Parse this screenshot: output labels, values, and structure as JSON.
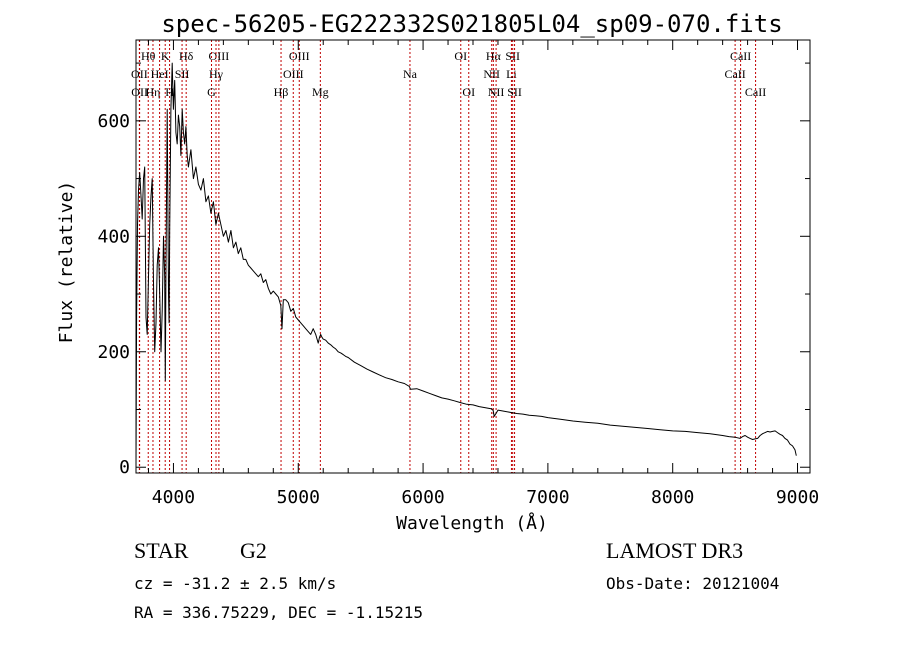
{
  "chart_data": {
    "type": "line",
    "title": "spec-56205-EG222332S021805L04_sp09-070.fits",
    "xlabel": "Wavelength (Å)",
    "ylabel": "Flux (relative)",
    "xlim": [
      3700,
      9100
    ],
    "ylim": [
      -10,
      740
    ],
    "x_ticks": [
      4000,
      5000,
      6000,
      7000,
      8000,
      9000
    ],
    "y_ticks": [
      0,
      200,
      400,
      600
    ],
    "x_tick_labels": [
      "4000",
      "5000",
      "6000",
      "7000",
      "8000",
      "9000"
    ],
    "y_tick_labels": [
      "0",
      "200",
      "400",
      "600"
    ],
    "grid": false,
    "series": [
      {
        "name": "flux",
        "color": "#000000",
        "x": [
          3700,
          3705,
          3712,
          3720,
          3730,
          3740,
          3750,
          3760,
          3770,
          3780,
          3790,
          3800,
          3810,
          3820,
          3830,
          3840,
          3850,
          3860,
          3870,
          3880,
          3890,
          3900,
          3910,
          3920,
          3930,
          3935,
          3940,
          3950,
          3960,
          3965,
          3970,
          3980,
          3990,
          4000,
          4010,
          4020,
          4030,
          4040,
          4050,
          4060,
          4070,
          4080,
          4090,
          4100,
          4110,
          4120,
          4140,
          4160,
          4180,
          4200,
          4220,
          4240,
          4260,
          4280,
          4300,
          4320,
          4340,
          4360,
          4380,
          4400,
          4420,
          4440,
          4460,
          4480,
          4500,
          4520,
          4540,
          4560,
          4580,
          4600,
          4620,
          4640,
          4660,
          4680,
          4700,
          4720,
          4740,
          4760,
          4780,
          4800,
          4820,
          4840,
          4860,
          4870,
          4880,
          4900,
          4920,
          4940,
          4960,
          4980,
          5000,
          5020,
          5040,
          5060,
          5080,
          5100,
          5120,
          5140,
          5160,
          5170,
          5180,
          5190,
          5200,
          5220,
          5240,
          5260,
          5280,
          5300,
          5320,
          5340,
          5360,
          5380,
          5400,
          5450,
          5500,
          5550,
          5600,
          5650,
          5700,
          5750,
          5800,
          5850,
          5890,
          5900,
          5950,
          6000,
          6050,
          6100,
          6150,
          6200,
          6250,
          6300,
          6350,
          6400,
          6450,
          6500,
          6550,
          6562,
          6570,
          6600,
          6650,
          6700,
          6750,
          6800,
          6850,
          6900,
          6950,
          7000,
          7100,
          7200,
          7300,
          7400,
          7500,
          7600,
          7700,
          7800,
          7900,
          8000,
          8100,
          8200,
          8300,
          8400,
          8450,
          8500,
          8520,
          8540,
          8560,
          8580,
          8600,
          8620,
          8640,
          8660,
          8680,
          8700,
          8720,
          8740,
          8760,
          8780,
          8800,
          8820,
          8840,
          8860,
          8880,
          8900,
          8920,
          8940,
          8960,
          8980,
          8990
        ],
        "values": [
          0,
          260,
          420,
          480,
          510,
          470,
          430,
          500,
          520,
          260,
          230,
          330,
          420,
          470,
          500,
          320,
          200,
          250,
          350,
          380,
          300,
          200,
          270,
          400,
          330,
          150,
          350,
          620,
          300,
          250,
          410,
          620,
          700,
          620,
          670,
          580,
          560,
          610,
          590,
          540,
          620,
          580,
          560,
          590,
          540,
          520,
          550,
          500,
          520,
          490,
          480,
          500,
          460,
          470,
          440,
          460,
          420,
          440,
          420,
          400,
          410,
          390,
          410,
          380,
          390,
          370,
          380,
          360,
          360,
          350,
          345,
          340,
          335,
          330,
          335,
          320,
          325,
          310,
          300,
          305,
          300,
          295,
          280,
          240,
          290,
          290,
          285,
          270,
          275,
          260,
          255,
          250,
          245,
          240,
          235,
          230,
          240,
          230,
          215,
          225,
          230,
          225,
          222,
          220,
          215,
          212,
          208,
          205,
          200,
          198,
          195,
          192,
          190,
          182,
          176,
          170,
          165,
          160,
          155,
          152,
          148,
          145,
          140,
          135,
          136,
          132,
          128,
          124,
          120,
          118,
          115,
          112,
          109,
          108,
          105,
          103,
          101,
          98,
          88,
          99,
          97,
          95,
          93,
          92,
          90,
          89,
          88,
          86,
          83,
          80,
          78,
          76,
          73,
          71,
          69,
          67,
          65,
          63,
          62,
          60,
          58,
          55,
          53,
          52,
          51,
          50,
          53,
          55,
          52,
          50,
          48,
          49,
          50,
          55,
          58,
          60,
          62,
          61,
          62,
          63,
          60,
          57,
          55,
          50,
          47,
          40,
          37,
          30,
          20
        ]
      }
    ],
    "line_markers": [
      {
        "label": "Hθ",
        "x": 3798,
        "row": 1
      },
      {
        "label": "OII",
        "x": 3727,
        "row": 2
      },
      {
        "label": "OII",
        "x": 3729,
        "row": 3
      },
      {
        "label": "Hη",
        "x": 3836,
        "row": 3
      },
      {
        "label": "HeI",
        "x": 3889,
        "row": 2
      },
      {
        "label": "K",
        "x": 3934,
        "row": 1
      },
      {
        "label": "H",
        "x": 3969,
        "row": 3
      },
      {
        "label": "Hδ",
        "x": 4102,
        "row": 1
      },
      {
        "label": "SII",
        "x": 4069,
        "row": 2
      },
      {
        "label": "OIII",
        "x": 4364,
        "row": 1
      },
      {
        "label": "Hγ",
        "x": 4341,
        "row": 2
      },
      {
        "label": "G",
        "x": 4305,
        "row": 3
      },
      {
        "label": "Hβ",
        "x": 4862,
        "row": 3
      },
      {
        "label": "OIII",
        "x": 5008,
        "row": 1
      },
      {
        "label": "OIII",
        "x": 4960,
        "row": 2
      },
      {
        "label": "Mg",
        "x": 5177,
        "row": 3
      },
      {
        "label": "Na",
        "x": 5895,
        "row": 2
      },
      {
        "label": "OI",
        "x": 6302,
        "row": 1
      },
      {
        "label": "OI",
        "x": 6366,
        "row": 3
      },
      {
        "label": "Hα",
        "x": 6563,
        "row": 1
      },
      {
        "label": "NII",
        "x": 6550,
        "row": 2
      },
      {
        "label": "NII",
        "x": 6585,
        "row": 3
      },
      {
        "label": "SII",
        "x": 6718,
        "row": 1
      },
      {
        "label": "Li",
        "x": 6708,
        "row": 2
      },
      {
        "label": "SII",
        "x": 6733,
        "row": 3
      },
      {
        "label": "CaII",
        "x": 8544,
        "row": 1
      },
      {
        "label": "CaII",
        "x": 8500,
        "row": 2
      },
      {
        "label": "CaII",
        "x": 8664,
        "row": 3
      }
    ],
    "marker_color": "#c00000"
  },
  "info": {
    "object_class": "STAR",
    "subclass": "G2",
    "survey": "LAMOST DR3",
    "cz": "cz = -31.2 ± 2.5 km/s",
    "obs_date": "Obs-Date: 20121004",
    "coords": "RA = 336.75229, DEC =  -1.15215"
  }
}
